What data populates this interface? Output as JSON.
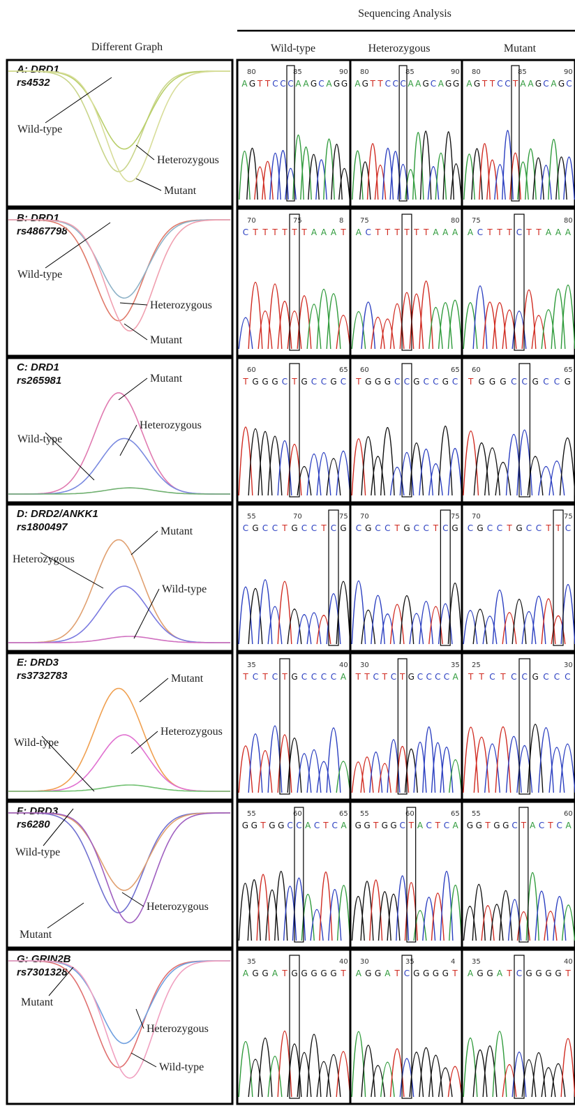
{
  "header": {
    "title": "Sequencing Analysis",
    "left_column": "Different Graph",
    "columns": [
      "Wild-type",
      "Heterozygous",
      "Mutant"
    ]
  },
  "panels": [
    {
      "label": "A: DRD1",
      "snp": "rs4532",
      "curves": [
        "Wild-type",
        "Heterozygous",
        "Mutant"
      ],
      "sequences": [
        {
          "positions": [
            "80",
            "85",
            "90"
          ],
          "bases": "AGTTCCCAAGCAGG"
        },
        {
          "positions": [
            "80",
            "85",
            "90"
          ],
          "bases": "AGTTCCCAAGCAGG"
        },
        {
          "positions": [
            "80",
            "85",
            "90"
          ],
          "bases": "AGTTCCTAAGCAGC"
        }
      ]
    },
    {
      "label": "B: DRD1",
      "snp": "rs4867798",
      "curves": [
        "Wild-type",
        "Heterozygous",
        "Mutant"
      ],
      "sequences": [
        {
          "positions": [
            "70",
            "75",
            "8"
          ],
          "bases": "CTTTTTTAAAT"
        },
        {
          "positions": [
            "75",
            "80"
          ],
          "bases": "ACTTTTTTAAA"
        },
        {
          "positions": [
            "75",
            "80"
          ],
          "bases": "ACTTTCTTAAA"
        }
      ]
    },
    {
      "label": "C: DRD1",
      "snp": "rs265981",
      "curves": [
        "Mutant",
        "Heterozygous",
        "Wild-type"
      ],
      "sequences": [
        {
          "positions": [
            "60",
            "65"
          ],
          "bases": "TGGGCTGCCGC"
        },
        {
          "positions": [
            "60",
            "65"
          ],
          "bases": "TGGGCCGCCGC"
        },
        {
          "positions": [
            "60",
            "65"
          ],
          "bases": "TGGGCCGCCG"
        }
      ]
    },
    {
      "label": "D: DRD2/ANKK1",
      "snp": "rs1800497",
      "curves": [
        "Mutant",
        "Heterozygous",
        "Wild-type"
      ],
      "sequences": [
        {
          "positions": [
            "55",
            "70",
            "75"
          ],
          "bases": "CGCCTGCCTCG"
        },
        {
          "positions": [
            "70",
            "75"
          ],
          "bases": "CGCCTGCCTCG"
        },
        {
          "positions": [
            "70",
            "75"
          ],
          "bases": "CGCCTGCCTTC"
        }
      ]
    },
    {
      "label": "E: DRD3",
      "snp": "rs3732783",
      "curves": [
        "Mutant",
        "Heterozygous",
        "Wild-type"
      ],
      "sequences": [
        {
          "positions": [
            "35",
            "40"
          ],
          "bases": "TCTCTGCCCCA"
        },
        {
          "positions": [
            "30",
            "35"
          ],
          "bases": "TTCTCTGCCCCA"
        },
        {
          "positions": [
            "25",
            "30"
          ],
          "bases": "TTCTCCGCCC"
        }
      ]
    },
    {
      "label": "F: DRD3",
      "snp": "rs6280",
      "curves": [
        "Wild-type",
        "Heterozygous",
        "Mutant"
      ],
      "sequences": [
        {
          "positions": [
            "55",
            "60",
            "65"
          ],
          "bases": "GGTGGCCACTCA"
        },
        {
          "positions": [
            "55",
            "60",
            "65"
          ],
          "bases": "GGTGGCTACTCA"
        },
        {
          "positions": [
            "55",
            "60"
          ],
          "bases": "GGTGGCTACTCA"
        }
      ]
    },
    {
      "label": "G: GRIN2B",
      "snp": "rs7301328",
      "curves": [
        "Mutant",
        "Heterozygous",
        "Wild-type"
      ],
      "sequences": [
        {
          "positions": [
            "35",
            "40"
          ],
          "bases": "AGGATGGGGGT"
        },
        {
          "positions": [
            "30",
            "35",
            "4"
          ],
          "bases": "AGGATCGGGGT"
        },
        {
          "positions": [
            "35",
            "40"
          ],
          "bases": "AGGATCGGGGT"
        }
      ]
    }
  ]
}
